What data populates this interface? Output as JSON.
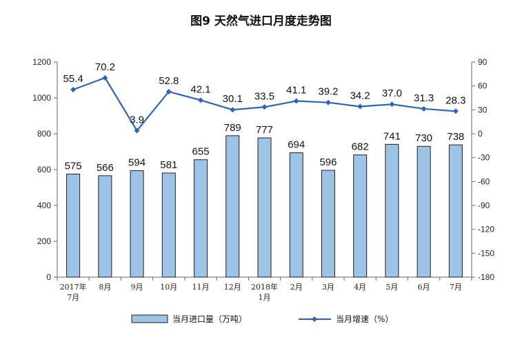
{
  "chart_data": {
    "type": "bar+line",
    "title": "图9 天然气进口月度走势图",
    "categories": [
      [
        "2017年",
        "7月"
      ],
      [
        "8月"
      ],
      [
        "9月"
      ],
      [
        "10月"
      ],
      [
        "11月"
      ],
      [
        "12月"
      ],
      [
        "2018年",
        "1月"
      ],
      [
        "2月"
      ],
      [
        "3月"
      ],
      [
        "4月"
      ],
      [
        "5月"
      ],
      [
        "6月"
      ],
      [
        "7月"
      ]
    ],
    "series": [
      {
        "name": "当月进口量（万吨）",
        "type": "bar",
        "axis": "left",
        "values": [
          575,
          566,
          594,
          581,
          655,
          789,
          777,
          694,
          596,
          682,
          741,
          730,
          738
        ],
        "labels": [
          "575",
          "566",
          "594",
          "581",
          "655",
          "789",
          "777",
          "694",
          "596",
          "682",
          "741",
          "730",
          "738"
        ]
      },
      {
        "name": "当月增速（%）",
        "type": "line",
        "axis": "right",
        "values": [
          55.4,
          70.2,
          3.9,
          52.8,
          42.1,
          30.1,
          33.5,
          41.1,
          39.2,
          34.2,
          37.0,
          31.3,
          28.3
        ],
        "labels": [
          "55.4",
          "70.2",
          "3.9",
          "52.8",
          "42.1",
          "30.1",
          "33.5",
          "41.1",
          "39.2",
          "34.2",
          "37.0",
          "31.3",
          "28.3"
        ]
      }
    ],
    "y_left": {
      "min": 0,
      "max": 1200,
      "ticks": [
        "0",
        "200",
        "400",
        "600",
        "800",
        "1000",
        "1200"
      ]
    },
    "y_right": {
      "min": -180,
      "max": 90,
      "ticks": [
        "-180",
        "-150",
        "-120",
        "-90",
        "-60",
        "-30",
        "0",
        "30",
        "60",
        "90"
      ]
    },
    "legend_position": "bottom",
    "grid": false,
    "colors": {
      "bar_fill": "#9dc3e6",
      "bar_stroke": "#1f1f1f",
      "line": "#2e64b4"
    }
  }
}
